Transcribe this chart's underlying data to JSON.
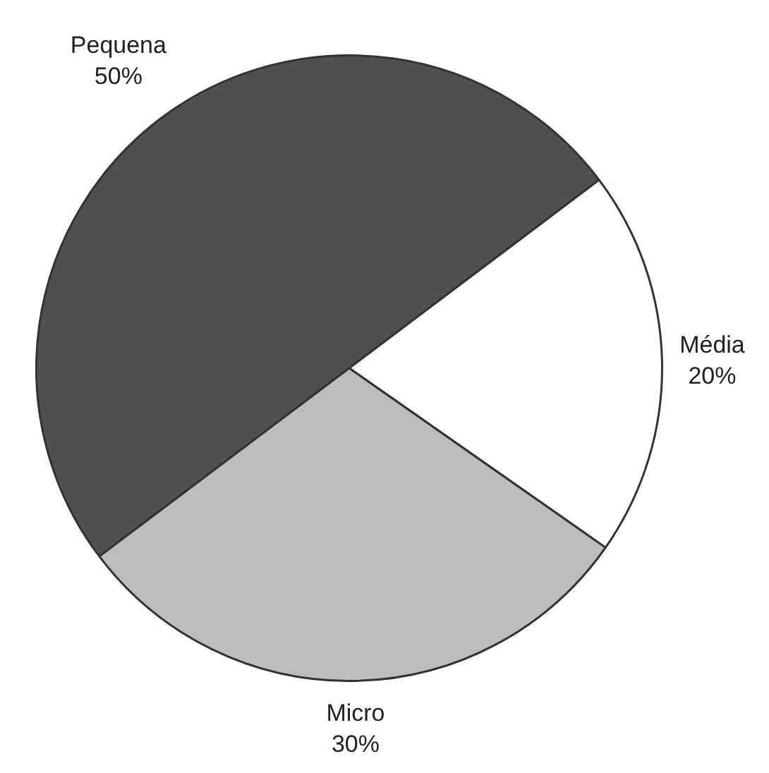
{
  "chart_data": {
    "type": "pie",
    "categories": [
      "Pequena",
      "Média",
      "Micro"
    ],
    "values": [
      50,
      20,
      30
    ],
    "value_labels": [
      "50%",
      "20%",
      "30%"
    ],
    "colors": [
      "#505050",
      "#ffffff",
      "#bdbdbd"
    ],
    "legend": false
  }
}
